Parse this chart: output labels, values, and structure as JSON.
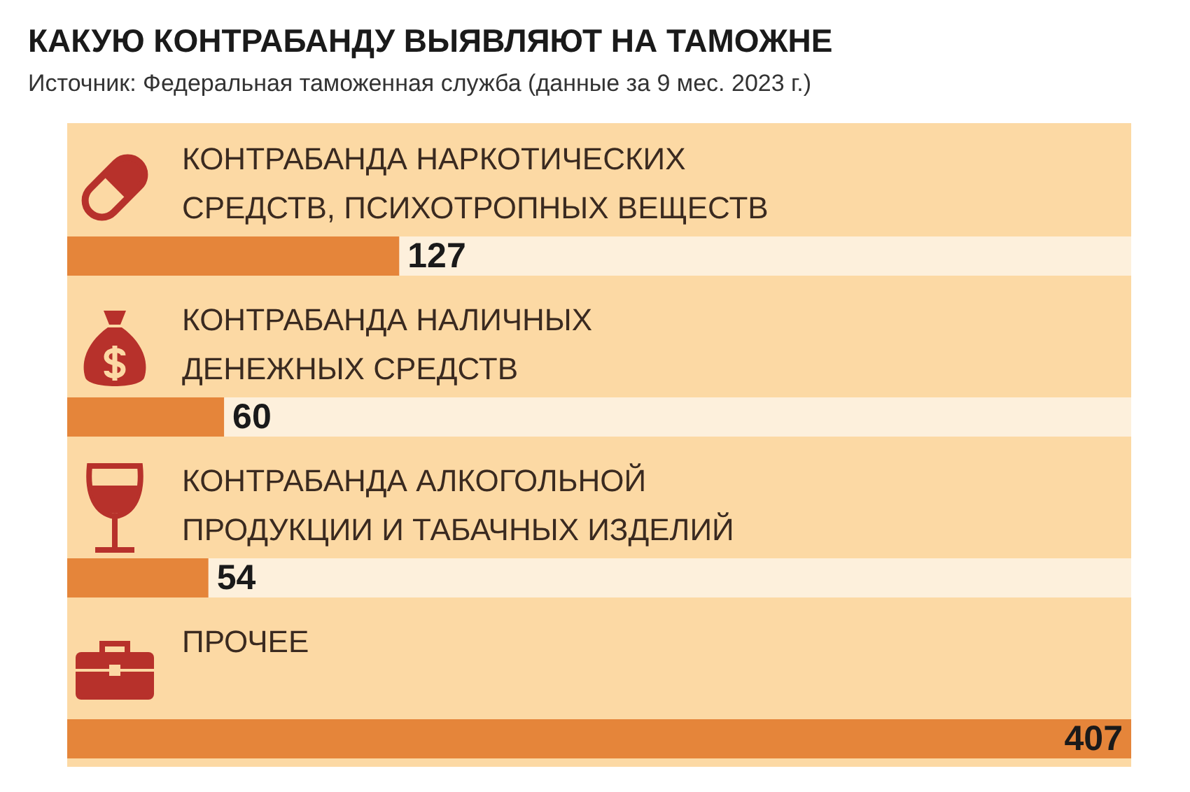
{
  "chart_data": {
    "type": "bar",
    "orientation": "horizontal",
    "title": "КАКУЮ КОНТРАБАНДУ ВЫЯВЛЯЮТ НА ТАМОЖНЕ",
    "subtitle": "Источник: Федеральная таможенная служба (данные за 9 мес. 2023 г.)",
    "categories": [
      "КОНТРАБАНДА НАРКОТИЧЕСКИХ\nСРЕДСТВ, ПСИХОТРОПНЫХ ВЕЩЕСТВ",
      "КОНТРАБАНДА НАЛИЧНЫХ\nДЕНЕЖНЫХ СРЕДСТВ",
      "КОНТРАБАНДА АЛКОГОЛЬНОЙ\nПРОДУКЦИИ И ТАБАЧНЫХ ИЗДЕЛИЙ",
      "ПРОЧЕЕ"
    ],
    "values": [
      127,
      60,
      54,
      407
    ],
    "color": "#e5853a",
    "data_labels": true
  }
}
